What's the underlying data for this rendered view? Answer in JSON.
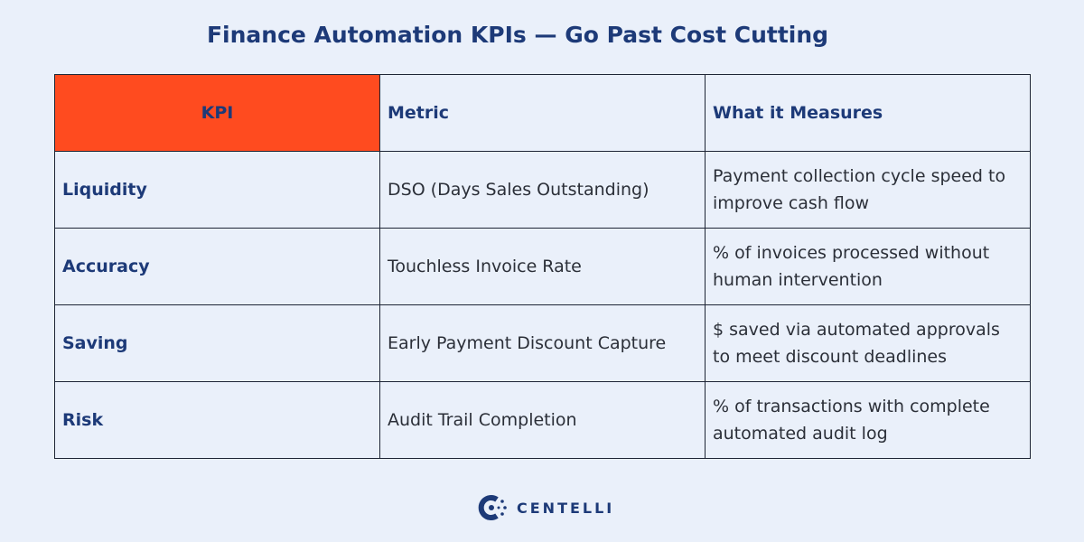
{
  "header": {
    "title": "Finance Automation KPIs — Go Past Cost Cutting"
  },
  "table": {
    "columns": [
      "KPI",
      "Metric",
      "What it Measures"
    ],
    "rows": [
      [
        "Liquidity",
        "DSO (Days Sales Outstanding)",
        "Payment collection cycle speed to improve cash flow"
      ],
      [
        "Accuracy",
        "Touchless Invoice Rate",
        "% of invoices processed without human intervention"
      ],
      [
        "Saving",
        "Early Payment Discount Capture",
        "$ saved via automated approvals to meet discount deadlines"
      ],
      [
        "Risk",
        "Audit Trail Completion",
        "% of transactions with complete automated audit log"
      ]
    ]
  },
  "logo": {
    "text": "CENTELLI"
  }
}
